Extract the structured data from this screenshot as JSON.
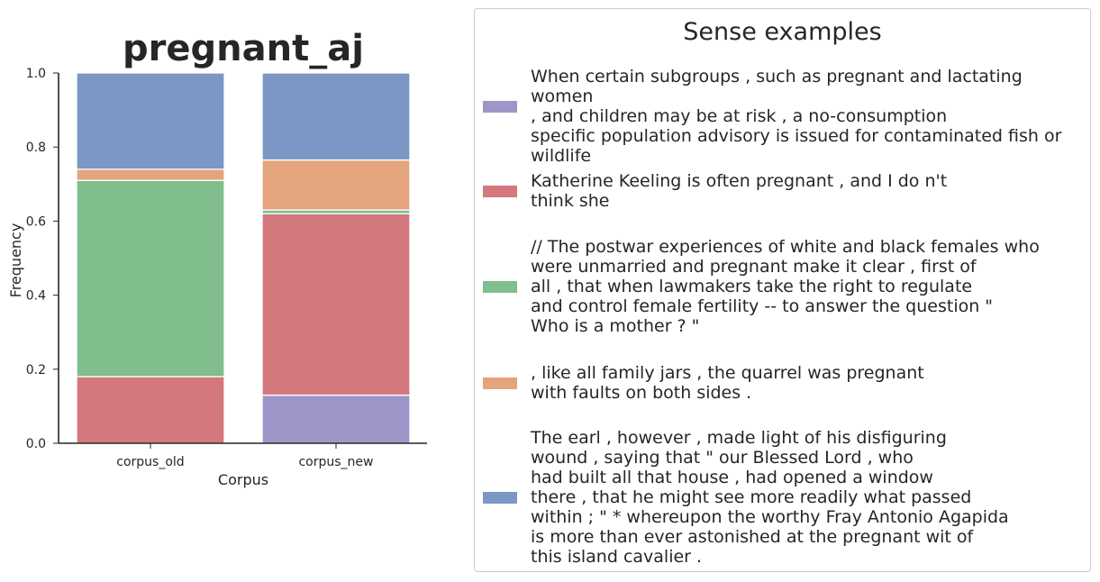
{
  "chart_data": {
    "type": "bar",
    "stacked": true,
    "title": "pregnant_aj",
    "xlabel": "Corpus",
    "ylabel": "Frequency",
    "ylim": [
      0,
      1.0
    ],
    "yticks": [
      "0.0",
      "0.2",
      "0.4",
      "0.6",
      "0.8",
      "1.0"
    ],
    "categories": [
      "corpus_old",
      "corpus_new"
    ],
    "series": [
      {
        "color": "#a095c8",
        "values": [
          0.0,
          0.13
        ]
      },
      {
        "color": "#d3787d",
        "values": [
          0.18,
          0.49
        ]
      },
      {
        "color": "#80be8d",
        "values": [
          0.53,
          0.01
        ]
      },
      {
        "color": "#e4a47d",
        "values": [
          0.03,
          0.135
        ]
      },
      {
        "color": "#7a97c6",
        "values": [
          0.26,
          0.235
        ]
      }
    ],
    "grid": false,
    "legend_placement": "right"
  },
  "legend": {
    "title": "Sense examples",
    "items": [
      {
        "color": "#a095c8",
        "text": "When certain subgroups , such as pregnant and lactating women\n, and children may be at risk , a no-consumption\nspecific population advisory is issued for contaminated fish or wildlife\n."
      },
      {
        "color": "#d3787d",
        "text": "Katherine Keeling is often pregnant , and I do n't\nthink she"
      },
      {
        "color": "#80be8d",
        "text": "// The postwar experiences of white and black females who\nwere unmarried and pregnant make it clear , first of\nall , that when lawmakers take the right to regulate\nand control female fertility -- to answer the question \"\nWho is a mother ? \""
      },
      {
        "color": "#e4a47d",
        "text": ", like all family jars , the quarrel was pregnant\nwith faults on both sides ."
      },
      {
        "color": "#7a97c6",
        "text": "The earl , however , made light of his disfiguring\nwound , saying that \" our Blessed Lord , who\nhad built all that house , had opened a window\nthere , that he might see more readily what passed\nwithin ; \" * whereupon the worthy Fray Antonio Agapida\nis more than ever astonished at the pregnant wit of\nthis island cavalier ."
      }
    ]
  }
}
